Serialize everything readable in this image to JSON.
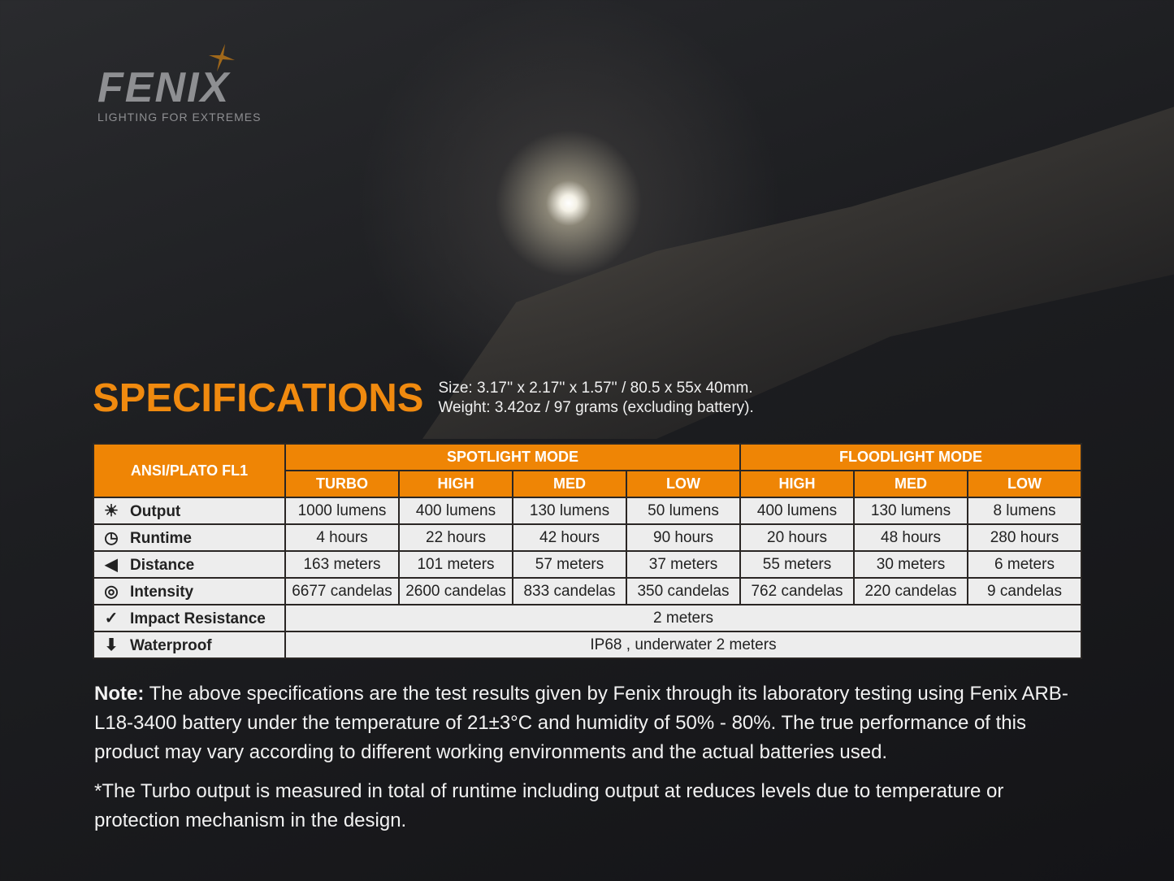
{
  "brand": {
    "logo": "FENIX",
    "tagline": "LIGHTING FOR EXTREMES"
  },
  "title": "SPECIFICATIONS",
  "size": "Size: 3.17'' x 2.17'' x 1.57'' / 80.5 x 55x 40mm.",
  "weight": "Weight: 3.42oz / 97 grams (excluding battery).",
  "table": {
    "corner": "ANSI/PLATO FL1",
    "groups": [
      "SPOTLIGHT MODE",
      "FLOODLIGHT MODE"
    ],
    "modes": [
      "TURBO",
      "HIGH",
      "MED",
      "LOW",
      "HIGH",
      "MED",
      "LOW"
    ],
    "rows": [
      {
        "label": "Output",
        "icon": "sunburst-icon",
        "values": [
          "1000 lumens",
          "400 lumens",
          "130 lumens",
          "50 lumens",
          "400 lumens",
          "130 lumens",
          "8 lumens"
        ]
      },
      {
        "label": "Runtime",
        "icon": "clock-icon",
        "values": [
          "4 hours",
          "22 hours",
          "42 hours",
          "90 hours",
          "20 hours",
          "48 hours",
          "280 hours"
        ]
      },
      {
        "label": "Distance",
        "icon": "beam-distance-icon",
        "values": [
          "163 meters",
          "101 meters",
          "57 meters",
          "37 meters",
          "55 meters",
          "30 meters",
          "6 meters"
        ]
      },
      {
        "label": "Intensity",
        "icon": "target-icon",
        "values": [
          "6677 candelas",
          "2600 candelas",
          "833 candelas",
          "350 candelas",
          "762 candelas",
          "220 candelas",
          "9 candelas"
        ]
      },
      {
        "label": "Impact Resistance",
        "icon": "impact-check-icon",
        "value": "2 meters"
      },
      {
        "label": "Waterproof",
        "icon": "water-arrow-icon",
        "value": "IP68 , underwater 2 meters"
      }
    ]
  },
  "note": {
    "bold": "Note:",
    "text": " The above specifications are the test results given by Fenix through its laboratory testing using Fenix ARB-L18-3400 battery under the temperature of 21±3°C and humidity of 50% - 80%. The true performance of this product may vary according to different working environments and the actual batteries used.",
    "footnote": "*The Turbo output is measured in total of runtime including output at reduces levels due to temperature or protection mechanism in the design."
  },
  "colors": {
    "accent": "#ef8505",
    "title": "#f08a0f"
  }
}
